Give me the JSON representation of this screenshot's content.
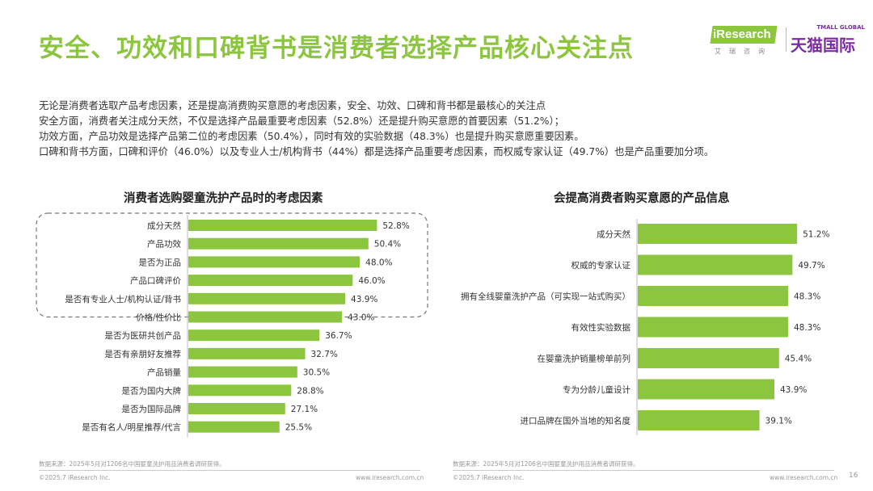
{
  "title": "安全、功效和口碑背书是消费者选择产品核心关注点",
  "logos": {
    "iresearch": "iResearch",
    "iresearch_sub": "艾瑞咨询",
    "tmall_top": "TMALL GLOBAL",
    "tmall": "天猫国际"
  },
  "intro": [
    "无论是消费者选取产品考虑因素，还是提高消费购买意愿的考虑因素，安全、功效、口碑和背书都是最核心的关注点",
    "安全方面，消费者关注成分天然，不仅是选择产品最重要考虑因素（52.8%）还是提升购买意愿的首要因素（51.2%）；",
    "功效方面，产品功效是选择产品第二位的考虑因素（50.4%），同时有效的实验数据（48.3%）也是提升购买意愿重要因素。",
    "口碑和背书方面，口碑和评价（46.0%）以及专业人士/机构背书（44%）都是选择产品重要考虑因素，而权威专家认证（49.7%）也是产品重要加分项。"
  ],
  "colors": {
    "accent": "#8cc63f",
    "tmall": "#7a2ca0"
  },
  "chart_data": [
    {
      "type": "bar",
      "orientation": "horizontal",
      "title": "消费者选购婴童洗护产品时的考虑因素",
      "categories": [
        "成分天然",
        "产品功效",
        "是否为正品",
        "产品口碑评价",
        "是否有专业人士/机构认证/背书",
        "价格/性价比",
        "是否为医研共创产品",
        "是否有亲朋好友推荐",
        "产品销量",
        "是否为国内大牌",
        "是否为国际品牌",
        "是否有名人/明星推荐/代言"
      ],
      "values": [
        52.8,
        50.4,
        48.0,
        46.0,
        43.9,
        43.0,
        36.7,
        32.7,
        30.5,
        28.8,
        27.1,
        25.5
      ],
      "labels": [
        "52.8%",
        "50.4%",
        "48.0%",
        "46.0%",
        "43.9%",
        "43.0%",
        "36.7%",
        "32.7%",
        "30.5%",
        "28.8%",
        "27.1%",
        "25.5%"
      ],
      "highlighted_top_n": 5,
      "unit": "%",
      "source": "数据来源：2025年5月对1206名中国婴童洗护用品消费者调研获得。",
      "copyright": "©2025.7 iResearch Inc.",
      "website": "www.iresearch.com.cn"
    },
    {
      "type": "bar",
      "orientation": "horizontal",
      "title": "会提高消费者购买意愿的产品信息",
      "categories": [
        "成分天然",
        "权威的专家认证",
        "拥有全线婴童洗护产品（可实现一站式购买）",
        "有效性实验数据",
        "在婴童洗护销量榜单前列",
        "专为分龄儿童设计",
        "进口品牌在国外当地的知名度"
      ],
      "values": [
        51.2,
        49.7,
        48.3,
        48.3,
        45.4,
        43.9,
        39.1
      ],
      "labels": [
        "51.2%",
        "49.7%",
        "48.3%",
        "48.3%",
        "45.4%",
        "43.9%",
        "39.1%"
      ],
      "unit": "%",
      "source": "数据来源：2025年5月对1206名中国婴童洗护用品消费者调研获得。",
      "copyright": "©2025.7 iResearch Inc.",
      "website": "www.iresearch.com.cn"
    }
  ],
  "page_number": "16"
}
